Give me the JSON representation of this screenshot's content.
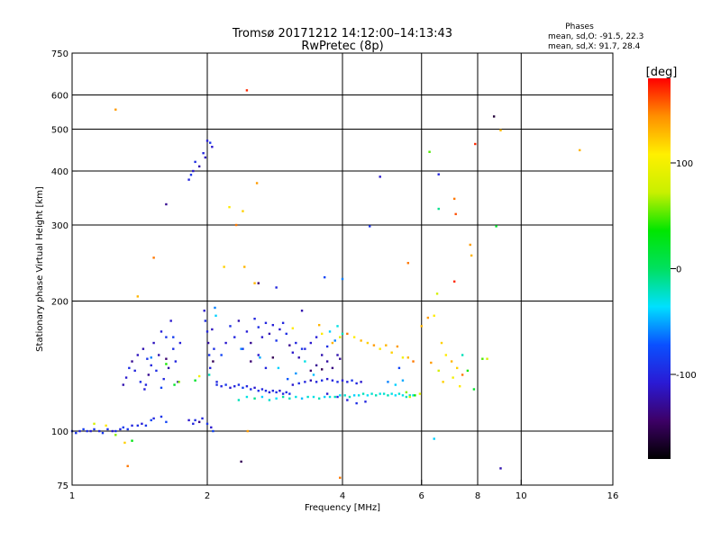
{
  "header": {
    "title_line1": "Tromsø 20171212 14:12:00–14:13:43",
    "title_line2": "RwPretec (8p)"
  },
  "stats": {
    "heading": "Phases",
    "line_o": "mean, sd,O: -91.5, 22.3",
    "line_x": "mean, sd,X:  91.7, 28.4"
  },
  "colorbar": {
    "unit": "[deg]",
    "ticks": [
      {
        "value": 100,
        "label": "100"
      },
      {
        "value": 0,
        "label": "0"
      },
      {
        "value": -100,
        "label": "-100"
      }
    ],
    "range": [
      -180,
      180
    ],
    "stops": [
      "#000000",
      "#3d0066",
      "#2a1ad4",
      "#0a50ff",
      "#00e0ff",
      "#00e060",
      "#00e600",
      "#c8f000",
      "#fff000",
      "#ff9000",
      "#ff0000"
    ]
  },
  "chart_data": {
    "type": "scatter",
    "title": "Tromsø 20171212 14:12:00–14:13:43",
    "subtitle": "RwPretec (8p)",
    "xlabel": "Frequency [MHz]",
    "ylabel": "Stationary phase Virtual Height [km]",
    "xscale": "log",
    "yscale": "log",
    "xlim": [
      1,
      16
    ],
    "ylim": [
      75,
      750
    ],
    "grid": true,
    "xticks": [
      1,
      2,
      4,
      6,
      8,
      10,
      16
    ],
    "xtick_labels": [
      "1",
      "2",
      "4",
      "6",
      "8",
      "10",
      "16"
    ],
    "xgrid": [
      2,
      4,
      6,
      8,
      10
    ],
    "yticks": [
      75,
      100,
      200,
      300,
      400,
      500,
      600,
      750
    ],
    "ytick_labels": [
      "75",
      "100",
      "200",
      "300",
      "400",
      "500",
      "600",
      "750"
    ],
    "ygrid": [
      100,
      200,
      300,
      400,
      500,
      600
    ],
    "color_by": "phase [deg]",
    "points": [
      [
        1.0,
        100,
        -95
      ],
      [
        1.02,
        99,
        -90
      ],
      [
        1.04,
        100,
        -100
      ],
      [
        1.06,
        101,
        -85
      ],
      [
        1.08,
        100,
        -95
      ],
      [
        1.1,
        100,
        -105
      ],
      [
        1.12,
        101,
        -90
      ],
      [
        1.15,
        100,
        -100
      ],
      [
        1.17,
        99,
        -88
      ],
      [
        1.2,
        101,
        -95
      ],
      [
        1.23,
        100,
        -110
      ],
      [
        1.25,
        100,
        -92
      ],
      [
        1.28,
        101,
        -98
      ],
      [
        1.3,
        102,
        -85
      ],
      [
        1.33,
        101,
        -90
      ],
      [
        1.36,
        103,
        -100
      ],
      [
        1.4,
        103,
        -95
      ],
      [
        1.43,
        104,
        -105
      ],
      [
        1.46,
        103,
        -90
      ],
      [
        1.5,
        106,
        -80
      ],
      [
        1.52,
        107,
        -100
      ],
      [
        1.12,
        104,
        80
      ],
      [
        1.19,
        103,
        110
      ],
      [
        1.25,
        98,
        60
      ],
      [
        1.31,
        94,
        120
      ],
      [
        1.33,
        83,
        150
      ],
      [
        1.36,
        95,
        30
      ],
      [
        1.3,
        128,
        -120
      ],
      [
        1.32,
        133,
        -110
      ],
      [
        1.34,
        140,
        -95
      ],
      [
        1.36,
        145,
        -130
      ],
      [
        1.38,
        138,
        -100
      ],
      [
        1.4,
        150,
        -115
      ],
      [
        1.42,
        130,
        -95
      ],
      [
        1.44,
        155,
        -120
      ],
      [
        1.45,
        125,
        -105
      ],
      [
        1.47,
        147,
        -90
      ],
      [
        1.48,
        135,
        -130
      ],
      [
        1.5,
        142,
        -100
      ],
      [
        1.52,
        160,
        -115
      ],
      [
        1.54,
        138,
        -95
      ],
      [
        1.56,
        150,
        -120
      ],
      [
        1.58,
        170,
        -105
      ],
      [
        1.6,
        132,
        -100
      ],
      [
        1.62,
        165,
        -90
      ],
      [
        1.64,
        140,
        -125
      ],
      [
        1.66,
        180,
        -110
      ],
      [
        1.68,
        155,
        -95
      ],
      [
        1.7,
        145,
        -100
      ],
      [
        1.72,
        130,
        -120
      ],
      [
        1.74,
        160,
        -105
      ],
      [
        1.5,
        148,
        -60
      ],
      [
        1.58,
        126,
        -80
      ],
      [
        1.62,
        147,
        -140
      ],
      [
        1.46,
        128,
        -100
      ],
      [
        1.68,
        165,
        -85
      ],
      [
        1.62,
        143,
        40
      ],
      [
        1.69,
        128,
        20
      ],
      [
        1.73,
        130,
        60
      ],
      [
        1.88,
        131,
        20
      ],
      [
        1.92,
        134,
        100
      ],
      [
        1.58,
        108,
        -90
      ],
      [
        1.62,
        105,
        -80
      ],
      [
        1.82,
        106,
        -110
      ],
      [
        1.86,
        104,
        -100
      ],
      [
        1.88,
        106,
        -95
      ],
      [
        1.92,
        105,
        -130
      ],
      [
        1.95,
        107,
        -100
      ],
      [
        2.0,
        104,
        -90
      ],
      [
        2.04,
        102,
        -110
      ],
      [
        2.06,
        100,
        -80
      ],
      [
        1.97,
        190,
        -110
      ],
      [
        1.98,
        180,
        -95
      ],
      [
        2.0,
        170,
        -100
      ],
      [
        2.01,
        160,
        -125
      ],
      [
        2.02,
        150,
        -90
      ],
      [
        2.03,
        140,
        -100
      ],
      [
        2.05,
        172,
        -115
      ],
      [
        2.07,
        155,
        -95
      ],
      [
        2.08,
        193,
        -60
      ],
      [
        2.09,
        185,
        -40
      ],
      [
        2.1,
        130,
        -100
      ],
      [
        2.02,
        135,
        -20
      ],
      [
        2.06,
        145,
        -150
      ],
      [
        1.82,
        382,
        -100
      ],
      [
        1.84,
        392,
        -90
      ],
      [
        1.86,
        400,
        -110
      ],
      [
        1.88,
        420,
        -95
      ],
      [
        1.92,
        410,
        -120
      ],
      [
        1.96,
        440,
        -100
      ],
      [
        1.98,
        430,
        -115
      ],
      [
        2.0,
        470,
        -105
      ],
      [
        2.03,
        465,
        -90
      ],
      [
        2.05,
        455,
        -110
      ],
      [
        1.62,
        335,
        -130
      ],
      [
        1.25,
        555,
        140
      ],
      [
        1.52,
        252,
        150
      ],
      [
        1.4,
        205,
        130
      ],
      [
        2.45,
        615,
        170
      ],
      [
        2.58,
        375,
        140
      ],
      [
        2.4,
        323,
        120
      ],
      [
        2.24,
        330,
        110
      ],
      [
        2.32,
        300,
        150
      ],
      [
        2.42,
        240,
        130
      ],
      [
        2.18,
        240,
        120
      ],
      [
        2.55,
        220,
        130
      ],
      [
        2.6,
        220,
        -140
      ],
      [
        2.1,
        128,
        -95
      ],
      [
        2.15,
        127,
        -100
      ],
      [
        2.2,
        128,
        -90
      ],
      [
        2.25,
        126,
        -110
      ],
      [
        2.3,
        127,
        -100
      ],
      [
        2.35,
        128,
        -95
      ],
      [
        2.4,
        126,
        -85
      ],
      [
        2.45,
        127,
        -100
      ],
      [
        2.5,
        125,
        -95
      ],
      [
        2.55,
        126,
        -110
      ],
      [
        2.6,
        124,
        -90
      ],
      [
        2.65,
        125,
        -100
      ],
      [
        2.7,
        124,
        -95
      ],
      [
        2.75,
        123,
        -105
      ],
      [
        2.8,
        124,
        -100
      ],
      [
        2.85,
        123,
        -95
      ],
      [
        2.9,
        124,
        -110
      ],
      [
        2.95,
        122,
        -100
      ],
      [
        3.0,
        123,
        -95
      ],
      [
        3.05,
        122,
        -90
      ],
      [
        2.35,
        118,
        -20
      ],
      [
        2.45,
        120,
        -30
      ],
      [
        2.55,
        119,
        -10
      ],
      [
        2.65,
        120,
        -40
      ],
      [
        2.75,
        118,
        -25
      ],
      [
        2.85,
        119,
        -35
      ],
      [
        2.95,
        120,
        -15
      ],
      [
        3.05,
        119,
        -20
      ],
      [
        3.15,
        120,
        -30
      ],
      [
        3.25,
        119,
        -45
      ],
      [
        3.35,
        120,
        -25
      ],
      [
        3.45,
        120,
        -30
      ],
      [
        3.55,
        119,
        -20
      ],
      [
        3.65,
        120,
        -40
      ],
      [
        3.75,
        120,
        -30
      ],
      [
        3.85,
        120,
        -20
      ],
      [
        3.95,
        121,
        -35
      ],
      [
        4.05,
        121,
        -25
      ],
      [
        4.15,
        120,
        -20
      ],
      [
        4.25,
        121,
        -40
      ],
      [
        4.35,
        121,
        -30
      ],
      [
        4.45,
        122,
        -20
      ],
      [
        4.55,
        121,
        -35
      ],
      [
        4.65,
        122,
        -25
      ],
      [
        4.75,
        121,
        -20
      ],
      [
        4.85,
        122,
        -30
      ],
      [
        4.95,
        122,
        -25
      ],
      [
        5.05,
        121,
        -20
      ],
      [
        5.15,
        122,
        -30
      ],
      [
        5.25,
        121,
        -35
      ],
      [
        5.35,
        122,
        -25
      ],
      [
        5.45,
        121,
        -30
      ],
      [
        5.55,
        120,
        -20
      ],
      [
        5.65,
        121,
        -25
      ],
      [
        5.75,
        121,
        -30
      ],
      [
        5.55,
        123,
        60
      ],
      [
        5.65,
        120,
        80
      ],
      [
        5.8,
        121,
        40
      ],
      [
        5.95,
        122,
        90
      ],
      [
        3.1,
        128,
        -110
      ],
      [
        3.2,
        129,
        -95
      ],
      [
        3.3,
        130,
        -100
      ],
      [
        3.4,
        131,
        -120
      ],
      [
        3.5,
        130,
        -100
      ],
      [
        3.6,
        131,
        -95
      ],
      [
        3.7,
        132,
        -110
      ],
      [
        3.8,
        131,
        -100
      ],
      [
        3.9,
        130,
        -95
      ],
      [
        4.0,
        131,
        -105
      ],
      [
        4.1,
        130,
        -100
      ],
      [
        4.2,
        131,
        -90
      ],
      [
        4.3,
        129,
        -100
      ],
      [
        4.4,
        130,
        -110
      ],
      [
        3.7,
        122,
        -110
      ],
      [
        3.9,
        120,
        -100
      ],
      [
        4.1,
        118,
        -105
      ],
      [
        4.3,
        116,
        -95
      ],
      [
        4.5,
        117,
        -100
      ],
      [
        3.4,
        138,
        -140
      ],
      [
        3.5,
        142,
        -130
      ],
      [
        3.6,
        139,
        -150
      ],
      [
        3.7,
        145,
        -125
      ],
      [
        3.8,
        140,
        -135
      ],
      [
        3.9,
        150,
        -120
      ],
      [
        3.95,
        147,
        -130
      ],
      [
        3.3,
        155,
        -100
      ],
      [
        3.4,
        160,
        -110
      ],
      [
        3.5,
        165,
        -105
      ],
      [
        3.6,
        150,
        -120
      ],
      [
        3.7,
        157,
        -95
      ],
      [
        3.75,
        170,
        -40
      ],
      [
        3.85,
        162,
        -60
      ],
      [
        3.9,
        175,
        -30
      ],
      [
        4.0,
        168,
        -20
      ],
      [
        2.15,
        150,
        -80
      ],
      [
        2.2,
        160,
        -110
      ],
      [
        2.25,
        175,
        -95
      ],
      [
        2.3,
        165,
        -100
      ],
      [
        2.35,
        180,
        -120
      ],
      [
        2.4,
        155,
        -90
      ],
      [
        2.45,
        170,
        -105
      ],
      [
        2.5,
        160,
        -130
      ],
      [
        2.55,
        182,
        -100
      ],
      [
        2.6,
        174,
        -95
      ],
      [
        2.65,
        165,
        -110
      ],
      [
        2.7,
        178,
        -100
      ],
      [
        2.75,
        168,
        -120
      ],
      [
        2.8,
        176,
        -105
      ],
      [
        2.85,
        162,
        -90
      ],
      [
        2.9,
        172,
        -110
      ],
      [
        2.95,
        178,
        -100
      ],
      [
        3.0,
        168,
        -95
      ],
      [
        3.05,
        158,
        -130
      ],
      [
        3.1,
        152,
        -110
      ],
      [
        3.15,
        160,
        -100
      ],
      [
        3.2,
        148,
        -120
      ],
      [
        3.25,
        155,
        -90
      ],
      [
        2.5,
        145,
        -140
      ],
      [
        2.6,
        150,
        -110
      ],
      [
        2.7,
        140,
        -100
      ],
      [
        2.8,
        148,
        -150
      ],
      [
        2.38,
        155,
        -60
      ],
      [
        2.62,
        148,
        -50
      ],
      [
        2.88,
        140,
        -40
      ],
      [
        3.02,
        132,
        -70
      ],
      [
        3.15,
        136,
        -55
      ],
      [
        3.3,
        145,
        -30
      ],
      [
        3.45,
        135,
        -45
      ],
      [
        4.1,
        168,
        150
      ],
      [
        4.25,
        165,
        110
      ],
      [
        4.4,
        162,
        130
      ],
      [
        4.55,
        160,
        120
      ],
      [
        4.7,
        158,
        140
      ],
      [
        4.85,
        155,
        110
      ],
      [
        5.0,
        158,
        130
      ],
      [
        5.15,
        152,
        120
      ],
      [
        5.3,
        157,
        140
      ],
      [
        5.45,
        148,
        100
      ],
      [
        5.6,
        148,
        130
      ],
      [
        5.75,
        145,
        150
      ],
      [
        3.8,
        160,
        130
      ],
      [
        3.95,
        165,
        90
      ],
      [
        3.6,
        168,
        110
      ],
      [
        5.05,
        130,
        -60
      ],
      [
        5.25,
        128,
        -40
      ],
      [
        5.45,
        131,
        -50
      ],
      [
        5.35,
        140,
        -80
      ],
      [
        6.2,
        183,
        140
      ],
      [
        6.4,
        185,
        110
      ],
      [
        6.5,
        208,
        80
      ],
      [
        6.0,
        175,
        130
      ],
      [
        6.65,
        160,
        120
      ],
      [
        6.8,
        150,
        110
      ],
      [
        7.0,
        145,
        130
      ],
      [
        7.2,
        140,
        120
      ],
      [
        7.4,
        135,
        150
      ],
      [
        6.55,
        138,
        80
      ],
      [
        6.7,
        130,
        120
      ],
      [
        6.3,
        144,
        140
      ],
      [
        7.05,
        133,
        100
      ],
      [
        7.3,
        127,
        110
      ],
      [
        7.6,
        138,
        40
      ],
      [
        7.85,
        125,
        20
      ],
      [
        8.2,
        147,
        50
      ],
      [
        8.4,
        147,
        80
      ],
      [
        7.4,
        150,
        -20
      ],
      [
        6.25,
        443,
        50
      ],
      [
        5.6,
        245,
        150
      ],
      [
        6.55,
        327,
        -10
      ],
      [
        6.55,
        393,
        -100
      ],
      [
        7.1,
        345,
        150
      ],
      [
        7.15,
        318,
        160
      ],
      [
        7.1,
        222,
        170
      ],
      [
        7.7,
        270,
        140
      ],
      [
        7.75,
        255,
        130
      ],
      [
        7.9,
        462,
        170
      ],
      [
        8.7,
        535,
        -160
      ],
      [
        8.8,
        298,
        20
      ],
      [
        9.0,
        497,
        130
      ],
      [
        4.6,
        298,
        -90
      ],
      [
        4.0,
        225,
        -60
      ],
      [
        4.85,
        388,
        -110
      ],
      [
        3.65,
        227,
        -80
      ],
      [
        6.4,
        96,
        -40
      ],
      [
        9.0,
        82,
        -120
      ],
      [
        2.38,
        85,
        -150
      ],
      [
        3.95,
        78,
        150
      ],
      [
        2.46,
        100,
        140
      ],
      [
        13.5,
        447,
        130
      ],
      [
        2.85,
        215,
        -100
      ],
      [
        3.25,
        190,
        -120
      ],
      [
        3.55,
        176,
        130
      ],
      [
        3.1,
        173,
        110
      ]
    ]
  }
}
